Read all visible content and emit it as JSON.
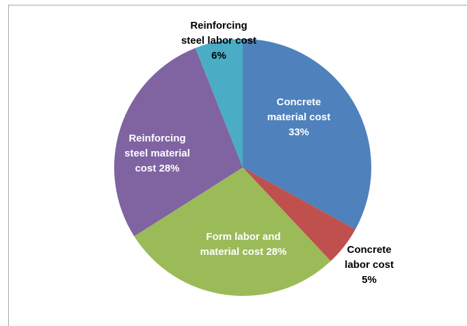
{
  "chart_data": {
    "type": "pie",
    "categories": [
      "Concrete material cost",
      "Concrete labor cost",
      "Form labor and material cost",
      "Reinforcing steel material cost",
      "Reinforcing steel labor cost"
    ],
    "values": [
      33,
      5,
      28,
      28,
      6
    ],
    "value_labels": [
      "33%",
      "5%",
      "28%",
      "28%",
      "6%"
    ],
    "colors": [
      "#4f81bd",
      "#c0504d",
      "#9bbb59",
      "#8064a2",
      "#4bacc6"
    ]
  }
}
